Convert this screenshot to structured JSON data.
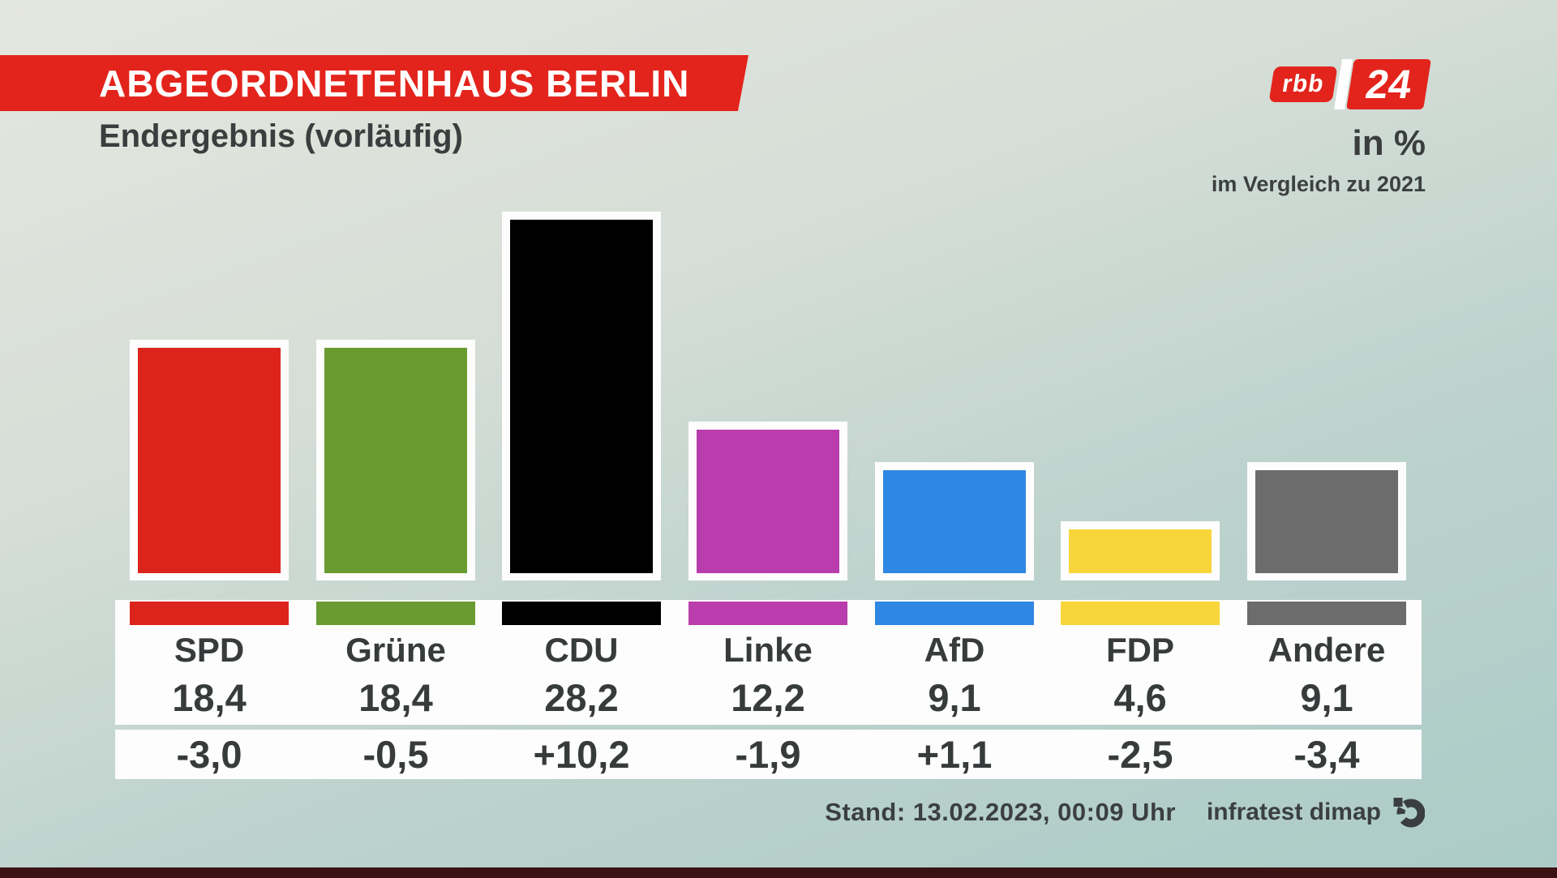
{
  "header": {
    "title": "ABGEORDNETENHAUS BERLIN",
    "subtitle": "Endergebnis (vorläufig)",
    "unit_label": "in %",
    "comparison_label": "im Vergleich zu 2021",
    "logo": {
      "left_text": "rbb",
      "right_text": "24"
    }
  },
  "chart_data": {
    "type": "bar",
    "title": "Abgeordnetenhaus Berlin — Endergebnis (vorläufig)",
    "unit": "%",
    "categories": [
      "SPD",
      "Grüne",
      "CDU",
      "Linke",
      "AfD",
      "FDP",
      "Andere"
    ],
    "series": [
      {
        "name": "Ergebnis in %",
        "values": [
          18.4,
          18.4,
          28.2,
          12.2,
          9.1,
          4.6,
          9.1
        ]
      },
      {
        "name": "Veränderung im Vergleich zu 2021",
        "values": [
          -3.0,
          -0.5,
          10.2,
          -1.9,
          1.1,
          -2.5,
          -3.4
        ]
      }
    ],
    "value_labels": [
      "18,4",
      "18,4",
      "28,2",
      "12,2",
      "9,1",
      "4,6",
      "9,1"
    ],
    "change_labels": [
      "-3,0",
      "-0,5",
      "+10,2",
      "-1,9",
      "+1,1",
      "-2,5",
      "-3,4"
    ],
    "bar_colors": [
      "#dc241d",
      "#6a9b31",
      "#000000",
      "#b93dac",
      "#2e87e2",
      "#f8d53b",
      "#6c6c6c"
    ],
    "ylim": [
      0,
      30
    ],
    "grid": false,
    "legend": "none"
  },
  "footer": {
    "stand": "Stand: 13.02.2023, 00:09 Uhr",
    "source": "infratest dimap"
  },
  "colors": {
    "banner_red": "#e3241c",
    "text_dark": "#373b3c",
    "band_white": "#fcfdfc",
    "bottom_bar": "#3b1313"
  }
}
